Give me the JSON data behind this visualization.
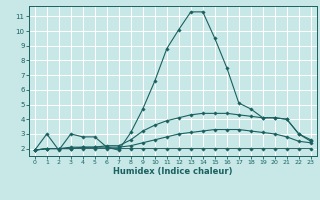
{
  "xlabel": "Humidex (Indice chaleur)",
  "xlim": [
    -0.5,
    23.5
  ],
  "ylim": [
    1.5,
    11.7
  ],
  "yticks": [
    2,
    3,
    4,
    5,
    6,
    7,
    8,
    9,
    10,
    11
  ],
  "xticks": [
    0,
    1,
    2,
    3,
    4,
    5,
    6,
    7,
    8,
    9,
    10,
    11,
    12,
    13,
    14,
    15,
    16,
    17,
    18,
    19,
    20,
    21,
    22,
    23
  ],
  "bg_color": "#c8e8e8",
  "grid_color": "#ffffff",
  "line_color": "#1a6060",
  "lines": [
    {
      "x": [
        0,
        1,
        2,
        3,
        4,
        5,
        6,
        7,
        8,
        9,
        10,
        11,
        12,
        13,
        14,
        15,
        16,
        17,
        18,
        19,
        20,
        21,
        22,
        23
      ],
      "y": [
        1.9,
        3.0,
        1.9,
        3.0,
        2.8,
        2.8,
        2.1,
        1.9,
        3.1,
        4.7,
        6.6,
        8.8,
        10.1,
        11.3,
        11.3,
        9.5,
        7.5,
        5.1,
        4.7,
        4.1,
        4.1,
        4.0,
        3.0,
        2.6
      ]
    },
    {
      "x": [
        0,
        1,
        2,
        3,
        4,
        5,
        6,
        7,
        8,
        9,
        10,
        11,
        12,
        13,
        14,
        15,
        16,
        17,
        18,
        19,
        20,
        21,
        22,
        23
      ],
      "y": [
        1.9,
        2.0,
        2.0,
        2.1,
        2.1,
        2.1,
        2.2,
        2.2,
        2.6,
        3.2,
        3.6,
        3.9,
        4.1,
        4.3,
        4.4,
        4.4,
        4.4,
        4.3,
        4.2,
        4.1,
        4.1,
        4.0,
        3.0,
        2.5
      ]
    },
    {
      "x": [
        0,
        1,
        2,
        3,
        4,
        5,
        6,
        7,
        8,
        9,
        10,
        11,
        12,
        13,
        14,
        15,
        16,
        17,
        18,
        19,
        20,
        21,
        22,
        23
      ],
      "y": [
        1.9,
        2.0,
        2.0,
        2.0,
        2.1,
        2.1,
        2.1,
        2.1,
        2.2,
        2.4,
        2.6,
        2.8,
        3.0,
        3.1,
        3.2,
        3.3,
        3.3,
        3.3,
        3.2,
        3.1,
        3.0,
        2.8,
        2.5,
        2.4
      ]
    },
    {
      "x": [
        0,
        1,
        2,
        3,
        4,
        5,
        6,
        7,
        8,
        9,
        10,
        11,
        12,
        13,
        14,
        15,
        16,
        17,
        18,
        19,
        20,
        21,
        22,
        23
      ],
      "y": [
        1.9,
        2.0,
        2.0,
        2.0,
        2.0,
        2.0,
        2.0,
        2.0,
        2.0,
        2.0,
        2.0,
        2.0,
        2.0,
        2.0,
        2.0,
        2.0,
        2.0,
        2.0,
        2.0,
        2.0,
        2.0,
        2.0,
        2.0,
        2.0
      ]
    }
  ]
}
